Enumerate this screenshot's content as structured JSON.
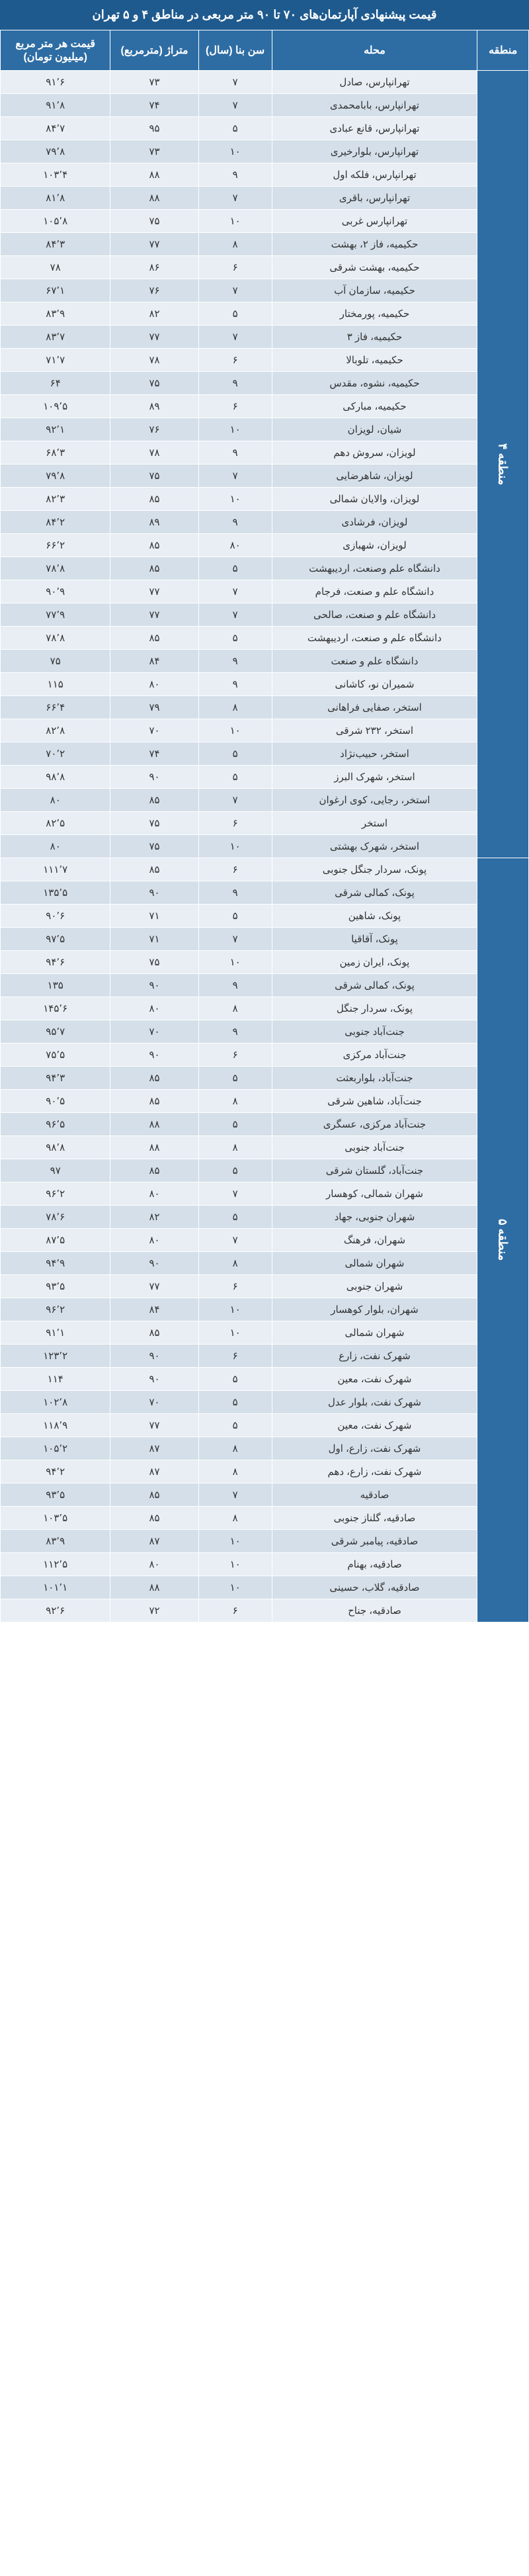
{
  "title": "قیمت پیشنهادی آپارتمان‌های ۷۰ تا ۹۰ متر مربعی در مناطق ۴ و ۵ تهران",
  "headers": {
    "region": "منطقه",
    "neighborhood": "محله",
    "age": "سن بنا (سال)",
    "area": "متراژ (مترمربع)",
    "price": "قیمت هر متر مربع (میلیون تومان)"
  },
  "regions": [
    {
      "name": "منطقه ۴",
      "rows": [
        {
          "neighborhood": "تهرانپارس، صادل",
          "age": "۷",
          "area": "۷۳",
          "price": "۹۱٬۶"
        },
        {
          "neighborhood": "تهرانپارس، بابامحمدی",
          "age": "۷",
          "area": "۷۴",
          "price": "۹۱٬۸"
        },
        {
          "neighborhood": "تهرانپارس، قانع عبادی",
          "age": "۵",
          "area": "۹۵",
          "price": "۸۴٬۷"
        },
        {
          "neighborhood": "تهرانپارس، بلوارخیری",
          "age": "۱۰",
          "area": "۷۳",
          "price": "۷۹٬۸"
        },
        {
          "neighborhood": "تهرانپارس، فلکه اول",
          "age": "۹",
          "area": "۸۸",
          "price": "۱۰۳٬۴"
        },
        {
          "neighborhood": "تهرانپارس، باقری",
          "age": "۷",
          "area": "۸۸",
          "price": "۸۱٬۸"
        },
        {
          "neighborhood": "تهرانپارس غربی",
          "age": "۱۰",
          "area": "۷۵",
          "price": "۱۰۵٬۸"
        },
        {
          "neighborhood": "حکیمیه، فاز ۲، بهشت",
          "age": "۸",
          "area": "۷۷",
          "price": "۸۴٬۳"
        },
        {
          "neighborhood": "حکیمیه، بهشت شرقی",
          "age": "۶",
          "area": "۸۶",
          "price": "۷۸"
        },
        {
          "neighborhood": "حکیمیه، سازمان آب",
          "age": "۷",
          "area": "۷۶",
          "price": "۶۷٬۱"
        },
        {
          "neighborhood": "حکیمیه، پورمختار",
          "age": "۵",
          "area": "۸۲",
          "price": "۸۳٬۹"
        },
        {
          "neighborhood": "حکیمیه، فاز ۳",
          "age": "۷",
          "area": "۷۷",
          "price": "۸۳٬۷"
        },
        {
          "neighborhood": "حکیمیه، تلوبالا",
          "age": "۶",
          "area": "۷۸",
          "price": "۷۱٬۷"
        },
        {
          "neighborhood": "حکیمیه، نشوه، مقدس",
          "age": "۹",
          "area": "۷۵",
          "price": "۶۴"
        },
        {
          "neighborhood": "حکیمیه، مبارکی",
          "age": "۶",
          "area": "۸۹",
          "price": "۱۰۹٬۵"
        },
        {
          "neighborhood": "شیان، لویزان",
          "age": "۱۰",
          "area": "۷۶",
          "price": "۹۲٬۱"
        },
        {
          "neighborhood": "لویزان، سروش دهم",
          "age": "۹",
          "area": "۷۸",
          "price": "۶۸٬۳"
        },
        {
          "neighborhood": "لویزان، شاهرضایی",
          "age": "۷",
          "area": "۷۵",
          "price": "۷۹٬۸"
        },
        {
          "neighborhood": "لویزان، والایان شمالی",
          "age": "۱۰",
          "area": "۸۵",
          "price": "۸۲٬۳"
        },
        {
          "neighborhood": "لویزان، فرشادی",
          "age": "۹",
          "area": "۸۹",
          "price": "۸۴٬۲"
        },
        {
          "neighborhood": "لویزان، شهبازی",
          "age": "۸۰",
          "area": "۸۵",
          "price": "۶۶٬۲"
        },
        {
          "neighborhood": "دانشگاه علم وصنعت، اردیبهشت",
          "age": "۵",
          "area": "۸۵",
          "price": "۷۸٬۸"
        },
        {
          "neighborhood": "دانشگاه علم و صنعت، فرجام",
          "age": "۷",
          "area": "۷۷",
          "price": "۹۰٬۹"
        },
        {
          "neighborhood": "دانشگاه علم و صنعت، صالحی",
          "age": "۷",
          "area": "۷۷",
          "price": "۷۷٬۹"
        },
        {
          "neighborhood": "دانشگاه علم و صنعت، اردیبهشت",
          "age": "۵",
          "area": "۸۵",
          "price": "۷۸٬۸"
        },
        {
          "neighborhood": "دانشگاه علم و صنعت",
          "age": "۹",
          "area": "۸۴",
          "price": "۷۵"
        },
        {
          "neighborhood": "شمیران نو، کاشانی",
          "age": "۹",
          "area": "۸۰",
          "price": "۱۱۵"
        },
        {
          "neighborhood": "استخر، صفایی فراهانی",
          "age": "۸",
          "area": "۷۹",
          "price": "۶۶٬۴"
        },
        {
          "neighborhood": "استخر، ۲۳۲ شرقی",
          "age": "۱۰",
          "area": "۷۰",
          "price": "۸۲٬۸"
        },
        {
          "neighborhood": "استخر، حبیب‌نژاد",
          "age": "۵",
          "area": "۷۴",
          "price": "۷۰٬۲"
        },
        {
          "neighborhood": "استخر، شهرک البرز",
          "age": "۵",
          "area": "۹۰",
          "price": "۹۸٬۸"
        },
        {
          "neighborhood": "استخر، رجایی، کوی ارغوان",
          "age": "۷",
          "area": "۸۵",
          "price": "۸۰"
        },
        {
          "neighborhood": "استخر",
          "age": "۶",
          "area": "۷۵",
          "price": "۸۲٬۵"
        },
        {
          "neighborhood": "استخر، شهرک بهشتی",
          "age": "۱۰",
          "area": "۷۵",
          "price": "۸۰"
        }
      ]
    },
    {
      "name": "منطقه ۵",
      "rows": [
        {
          "neighborhood": "پونک، سردار جنگل جنوبی",
          "age": "۶",
          "area": "۸۵",
          "price": "۱۱۱٬۷"
        },
        {
          "neighborhood": "پونک، کمالی شرقی",
          "age": "۹",
          "area": "۹۰",
          "price": "۱۳۵٬۵"
        },
        {
          "neighborhood": "پونک، شاهین",
          "age": "۵",
          "area": "۷۱",
          "price": "۹۰٬۶"
        },
        {
          "neighborhood": "پونک، آقاقیا",
          "age": "۷",
          "area": "۷۱",
          "price": "۹۷٬۵"
        },
        {
          "neighborhood": "پونک، ایران زمین",
          "age": "۱۰",
          "area": "۷۵",
          "price": "۹۴٬۶"
        },
        {
          "neighborhood": "پونک، کمالی شرقی",
          "age": "۹",
          "area": "۹۰",
          "price": "۱۳۵"
        },
        {
          "neighborhood": "پونک، سردار جنگل",
          "age": "۸",
          "area": "۸۰",
          "price": "۱۴۵٬۶"
        },
        {
          "neighborhood": "جنت‌آباد جنوبی",
          "age": "۹",
          "area": "۷۰",
          "price": "۹۵٬۷"
        },
        {
          "neighborhood": "جنت‌آباد مرکزی",
          "age": "۶",
          "area": "۹۰",
          "price": "۷۵٬۵"
        },
        {
          "neighborhood": "جنت‌آباد، بلواربعثت",
          "age": "۵",
          "area": "۸۵",
          "price": "۹۴٬۳"
        },
        {
          "neighborhood": "جنت‌آباد، شاهین شرقی",
          "age": "۸",
          "area": "۸۵",
          "price": "۹۰٬۵"
        },
        {
          "neighborhood": "جنت‌آباد مرکزی، عسگری",
          "age": "۵",
          "area": "۸۸",
          "price": "۹۶٬۵"
        },
        {
          "neighborhood": "جنت‌آباد جنوبی",
          "age": "۸",
          "area": "۸۸",
          "price": "۹۸٬۸"
        },
        {
          "neighborhood": "جنت‌آباد، گلستان شرقی",
          "age": "۵",
          "area": "۸۵",
          "price": "۹۷"
        },
        {
          "neighborhood": "شهران شمالی، کوهسار",
          "age": "۷",
          "area": "۸۰",
          "price": "۹۶٬۲"
        },
        {
          "neighborhood": "شهران جنوبی، جهاد",
          "age": "۵",
          "area": "۸۲",
          "price": "۷۸٬۶"
        },
        {
          "neighborhood": "شهران، فرهنگ",
          "age": "۷",
          "area": "۸۰",
          "price": "۸۷٬۵"
        },
        {
          "neighborhood": "شهران شمالی",
          "age": "۸",
          "area": "۹۰",
          "price": "۹۴٬۹"
        },
        {
          "neighborhood": "شهران جنوبی",
          "age": "۶",
          "area": "۷۷",
          "price": "۹۳٬۵"
        },
        {
          "neighborhood": "شهران، بلوار کوهسار",
          "age": "۱۰",
          "area": "۸۴",
          "price": "۹۶٬۲"
        },
        {
          "neighborhood": "شهران شمالی",
          "age": "۱۰",
          "area": "۸۵",
          "price": "۹۱٬۱"
        },
        {
          "neighborhood": "شهرک نفت، زارع",
          "age": "۶",
          "area": "۹۰",
          "price": "۱۲۳٬۲"
        },
        {
          "neighborhood": "شهرک نفت، معین",
          "age": "۵",
          "area": "۹۰",
          "price": "۱۱۴"
        },
        {
          "neighborhood": "شهرک نفت، بلوار عدل",
          "age": "۵",
          "area": "۷۰",
          "price": "۱۰۲٬۸"
        },
        {
          "neighborhood": "شهرک نفت، معین",
          "age": "۵",
          "area": "۷۷",
          "price": "۱۱۸٬۹"
        },
        {
          "neighborhood": "شهرک نفت، زارع، اول",
          "age": "۸",
          "area": "۸۷",
          "price": "۱۰۵٬۲"
        },
        {
          "neighborhood": "شهرک نفت، زارع، دهم",
          "age": "۸",
          "area": "۸۷",
          "price": "۹۴٬۲"
        },
        {
          "neighborhood": "صادقیه",
          "age": "۷",
          "area": "۸۵",
          "price": "۹۳٬۵"
        },
        {
          "neighborhood": "صادقیه، گلناز جنوبی",
          "age": "۸",
          "area": "۸۵",
          "price": "۱۰۳٬۵"
        },
        {
          "neighborhood": "صادقیه، پیامبر شرقی",
          "age": "۱۰",
          "area": "۸۷",
          "price": "۸۳٬۹"
        },
        {
          "neighborhood": "صادقیه، بهنام",
          "age": "۱۰",
          "area": "۸۰",
          "price": "۱۱۲٬۵"
        },
        {
          "neighborhood": "صادقیه، گلاب، حسینی",
          "age": "۱۰",
          "area": "۸۸",
          "price": "۱۰۱٬۱"
        },
        {
          "neighborhood": "صادقیه، جناح",
          "age": "۶",
          "area": "۷۲",
          "price": "۹۲٬۶"
        }
      ]
    }
  ]
}
